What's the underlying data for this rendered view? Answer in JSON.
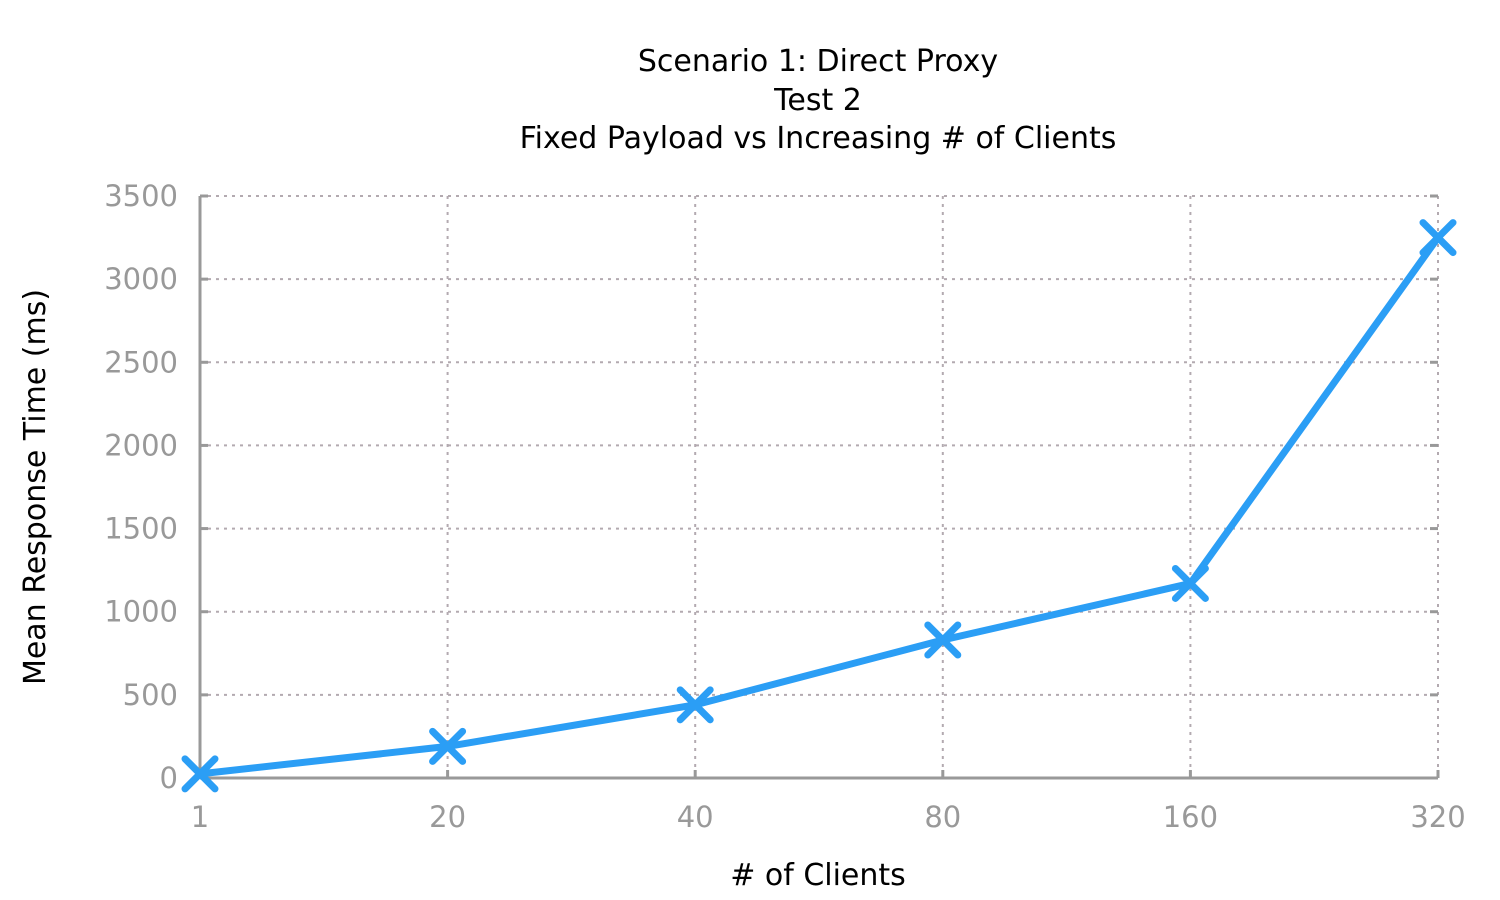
{
  "chart_data": {
    "type": "line",
    "title_lines": [
      "Scenario 1: Direct Proxy",
      "Test 2",
      "Fixed Payload vs Increasing # of Clients"
    ],
    "xlabel": "# of Clients",
    "ylabel": "Mean Response Time (ms)",
    "categories": [
      "1",
      "20",
      "40",
      "80",
      "160",
      "320"
    ],
    "y_ticks": [
      "0",
      "500",
      "1000",
      "1500",
      "2000",
      "2500",
      "3000",
      "3500"
    ],
    "ylim": [
      0,
      3500
    ],
    "grid": true,
    "series": [
      {
        "values": [
          25,
          190,
          440,
          830,
          1170,
          3250
        ],
        "color": "#2b9ef5",
        "marker": "x"
      }
    ]
  }
}
